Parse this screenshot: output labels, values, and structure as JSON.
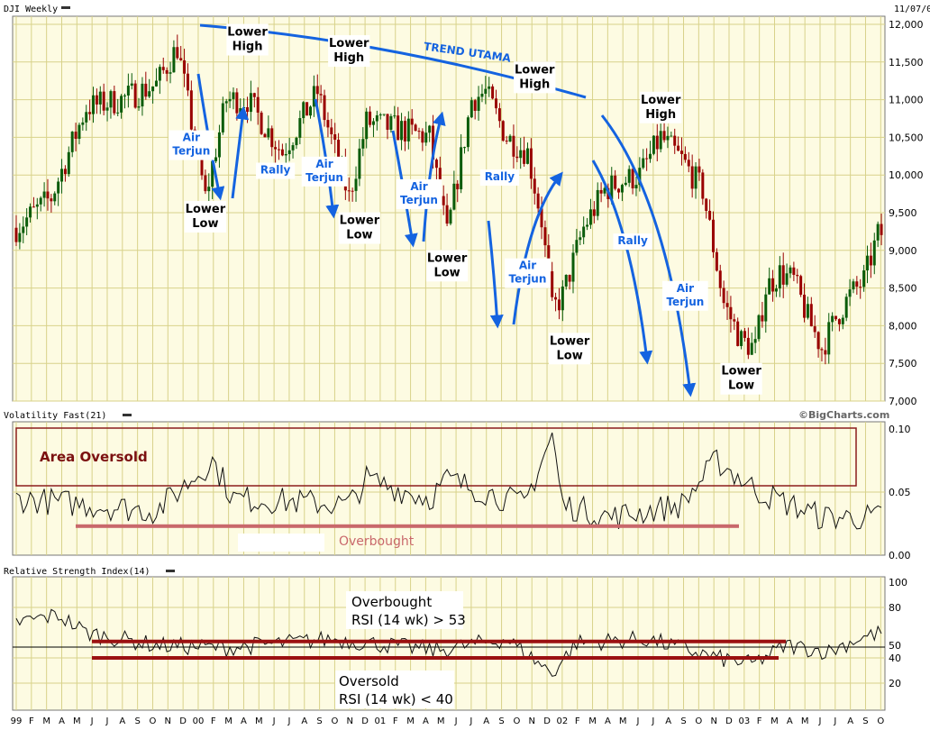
{
  "chart_data": [
    {
      "type": "candlestick",
      "title": "DJI Weekly",
      "date_label": "11/07/0",
      "ylim": [
        7000,
        12000
      ],
      "y_ticks": [
        "12,000",
        "11,500",
        "11,000",
        "10,500",
        "10,000",
        "9,500",
        "9,000",
        "8,500",
        "8,000",
        "7,500",
        "7,000"
      ],
      "y_tick_values": [
        12000,
        11500,
        11000,
        10500,
        10000,
        9500,
        9000,
        8500,
        8000,
        7500,
        7000
      ],
      "months": [
        "99",
        "F",
        "M",
        "A",
        "M",
        "J",
        "J",
        "A",
        "S",
        "O",
        "N",
        "D",
        "00",
        "F",
        "M",
        "A",
        "M",
        "J",
        "J",
        "A",
        "S",
        "O",
        "N",
        "D",
        "01",
        "F",
        "M",
        "A",
        "M",
        "J",
        "J",
        "A",
        "S",
        "O",
        "N",
        "D",
        "02",
        "F",
        "M",
        "A",
        "M",
        "J",
        "J",
        "A",
        "S",
        "O",
        "N",
        "D",
        "03",
        "F",
        "M",
        "A",
        "M",
        "J",
        "J",
        "A",
        "S",
        "O"
      ],
      "trend_label": "TREND UTAMA",
      "annotations": [
        {
          "text": [
            "Lower",
            "High"
          ],
          "week": 66,
          "value": 11850
        },
        {
          "text": [
            "Lower",
            "High"
          ],
          "week": 95,
          "value": 11700
        },
        {
          "text": [
            "Lower",
            "High"
          ],
          "week": 148,
          "value": 11350
        },
        {
          "text": [
            "Lower",
            "High"
          ],
          "week": 184,
          "value": 10950
        },
        {
          "text": [
            "Lower",
            "Low"
          ],
          "week": 54,
          "value": 9500
        },
        {
          "text": [
            "Lower",
            "Low"
          ],
          "week": 98,
          "value": 9350
        },
        {
          "text": [
            "Lower",
            "Low"
          ],
          "week": 123,
          "value": 8850
        },
        {
          "text": [
            "Lower",
            "Low"
          ],
          "week": 158,
          "value": 7750
        },
        {
          "text": [
            "Lower",
            "Low"
          ],
          "week": 207,
          "value": 7350
        }
      ],
      "blue_labels": [
        {
          "text": [
            "Air",
            "Terjun"
          ],
          "week": 50,
          "value": 10450
        },
        {
          "text": [
            "Rally"
          ],
          "week": 74,
          "value": 10020
        },
        {
          "text": [
            "Air",
            "Terjun"
          ],
          "week": 88,
          "value": 10100
        },
        {
          "text": [
            "Air",
            "Terjun"
          ],
          "week": 115,
          "value": 9800
        },
        {
          "text": [
            "Rally"
          ],
          "week": 138,
          "value": 9930
        },
        {
          "text": [
            "Air",
            "Terjun"
          ],
          "week": 146,
          "value": 8750
        },
        {
          "text": [
            "Rally"
          ],
          "week": 176,
          "value": 9080
        },
        {
          "text": [
            "Air",
            "Terjun"
          ],
          "week": 191,
          "value": 8450
        }
      ]
    },
    {
      "type": "line",
      "title": "Volatility Fast(21)",
      "credit": "©BigCharts.com",
      "ylim": [
        0,
        0.1
      ],
      "y_ticks": [
        "0.10",
        "0.05",
        "0.00"
      ],
      "y_tick_values": [
        0.1,
        0.05,
        0.0
      ],
      "box_label": "Area Oversold",
      "line_label": "Overbought",
      "threshold_value": 0.023
    },
    {
      "type": "line",
      "title": "Relative Strength Index(14)",
      "ylim": [
        0,
        100
      ],
      "y_ticks": [
        "100",
        "80",
        "50",
        "40",
        "20"
      ],
      "y_tick_values": [
        100,
        80,
        50,
        40,
        20
      ],
      "upper_label": [
        "Overbought",
        "RSI (14 wk) > 53"
      ],
      "lower_label": [
        "Oversold",
        "RSI (14 wk) < 40"
      ],
      "upper_value": 53,
      "lower_value": 40
    }
  ],
  "colors": {
    "panel_bg": "#fdfbe2",
    "grid": "#d8d28a",
    "candle_up": "#0a5c0a",
    "candle_down": "#990000",
    "annotation_blue": "#1463e0",
    "threshold_red": "#9b1111",
    "overbought_pink": "#c9686b"
  }
}
